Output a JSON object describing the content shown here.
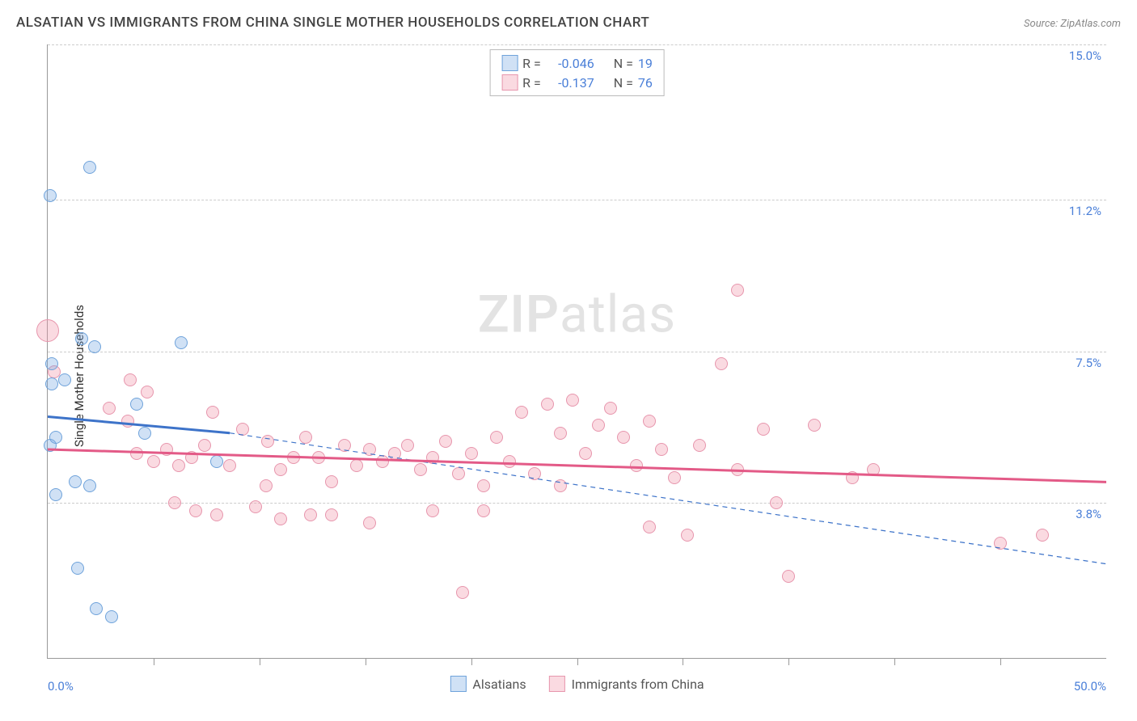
{
  "header": {
    "title": "ALSATIAN VS IMMIGRANTS FROM CHINA SINGLE MOTHER HOUSEHOLDS CORRELATION CHART",
    "source": "Source: ZipAtlas.com"
  },
  "ylabel": "Single Mother Households",
  "watermark_a": "ZIP",
  "watermark_b": "atlas",
  "axes": {
    "xlim": [
      0,
      50
    ],
    "ylim": [
      0,
      15
    ],
    "ygrid": [
      {
        "v": 15.0,
        "label": "15.0%"
      },
      {
        "v": 11.2,
        "label": "11.2%"
      },
      {
        "v": 7.5,
        "label": "7.5%"
      },
      {
        "v": 3.8,
        "label": "3.8%"
      }
    ],
    "xticks": [
      5,
      10,
      15,
      20,
      25,
      30,
      35,
      40,
      45
    ],
    "xlabels": [
      {
        "v": 0,
        "label": "0.0%"
      },
      {
        "v": 50,
        "label": "50.0%"
      }
    ]
  },
  "series": {
    "blue": {
      "label": "Alsatians",
      "fill": "rgba(120,170,225,0.35)",
      "stroke": "#6fa3db",
      "line_stroke": "#3d73c9",
      "r_label": "R =",
      "r_value": "-0.046",
      "n_label": "N =",
      "n_value": "19",
      "trend_solid": {
        "x1": 0,
        "y1": 5.9,
        "x2": 8.6,
        "y2": 5.5
      },
      "trend_dash": {
        "x1": 8.6,
        "y1": 5.5,
        "x2": 50,
        "y2": 2.3
      },
      "points": [
        {
          "x": 0.1,
          "y": 11.3,
          "r": 8
        },
        {
          "x": 0.8,
          "y": 6.8,
          "r": 8
        },
        {
          "x": 2.0,
          "y": 12.0,
          "r": 8
        },
        {
          "x": 0.2,
          "y": 7.2,
          "r": 8
        },
        {
          "x": 1.6,
          "y": 7.8,
          "r": 8
        },
        {
          "x": 2.2,
          "y": 7.6,
          "r": 8
        },
        {
          "x": 0.2,
          "y": 6.7,
          "r": 8
        },
        {
          "x": 0.1,
          "y": 5.2,
          "r": 8
        },
        {
          "x": 0.4,
          "y": 5.4,
          "r": 8
        },
        {
          "x": 1.3,
          "y": 4.3,
          "r": 8
        },
        {
          "x": 2.0,
          "y": 4.2,
          "r": 8
        },
        {
          "x": 0.4,
          "y": 4.0,
          "r": 8
        },
        {
          "x": 4.2,
          "y": 6.2,
          "r": 8
        },
        {
          "x": 4.6,
          "y": 5.5,
          "r": 8
        },
        {
          "x": 1.4,
          "y": 2.2,
          "r": 8
        },
        {
          "x": 2.3,
          "y": 1.2,
          "r": 8
        },
        {
          "x": 3.0,
          "y": 1.0,
          "r": 8
        },
        {
          "x": 6.3,
          "y": 7.7,
          "r": 8
        },
        {
          "x": 8.0,
          "y": 4.8,
          "r": 8
        }
      ]
    },
    "pink": {
      "label": "Immigrants from China",
      "fill": "rgba(240,150,170,0.35)",
      "stroke": "#e796ad",
      "line_stroke": "#e35a87",
      "r_label": "R =",
      "r_value": "-0.137",
      "n_label": "N =",
      "n_value": "76",
      "trend_solid": {
        "x1": 0,
        "y1": 5.1,
        "x2": 50,
        "y2": 4.3
      },
      "points": [
        {
          "x": 0.0,
          "y": 8.0,
          "r": 14
        },
        {
          "x": 0.3,
          "y": 7.0,
          "r": 8
        },
        {
          "x": 3.9,
          "y": 6.8,
          "r": 8
        },
        {
          "x": 2.9,
          "y": 6.1,
          "r": 8
        },
        {
          "x": 3.8,
          "y": 5.8,
          "r": 8
        },
        {
          "x": 4.7,
          "y": 6.5,
          "r": 8
        },
        {
          "x": 7.8,
          "y": 6.0,
          "r": 8
        },
        {
          "x": 4.2,
          "y": 5.0,
          "r": 8
        },
        {
          "x": 5.0,
          "y": 4.8,
          "r": 8
        },
        {
          "x": 5.6,
          "y": 5.1,
          "r": 8
        },
        {
          "x": 6.2,
          "y": 4.7,
          "r": 8
        },
        {
          "x": 6.8,
          "y": 4.9,
          "r": 8
        },
        {
          "x": 7.4,
          "y": 5.2,
          "r": 8
        },
        {
          "x": 6.0,
          "y": 3.8,
          "r": 8
        },
        {
          "x": 7.0,
          "y": 3.6,
          "r": 8
        },
        {
          "x": 8.0,
          "y": 3.5,
          "r": 8
        },
        {
          "x": 8.6,
          "y": 4.7,
          "r": 8
        },
        {
          "x": 9.2,
          "y": 5.6,
          "r": 8
        },
        {
          "x": 9.8,
          "y": 3.7,
          "r": 8
        },
        {
          "x": 10.4,
          "y": 5.3,
          "r": 8
        },
        {
          "x": 10.3,
          "y": 4.2,
          "r": 8
        },
        {
          "x": 11.0,
          "y": 4.6,
          "r": 8
        },
        {
          "x": 11.0,
          "y": 3.4,
          "r": 8
        },
        {
          "x": 11.6,
          "y": 4.9,
          "r": 8
        },
        {
          "x": 12.2,
          "y": 5.4,
          "r": 8
        },
        {
          "x": 12.4,
          "y": 3.5,
          "r": 8
        },
        {
          "x": 12.8,
          "y": 4.9,
          "r": 8
        },
        {
          "x": 13.4,
          "y": 4.3,
          "r": 8
        },
        {
          "x": 13.4,
          "y": 3.5,
          "r": 8
        },
        {
          "x": 14.0,
          "y": 5.2,
          "r": 8
        },
        {
          "x": 14.6,
          "y": 4.7,
          "r": 8
        },
        {
          "x": 15.2,
          "y": 5.1,
          "r": 8
        },
        {
          "x": 15.2,
          "y": 3.3,
          "r": 8
        },
        {
          "x": 15.8,
          "y": 4.8,
          "r": 8
        },
        {
          "x": 16.4,
          "y": 5.0,
          "r": 8
        },
        {
          "x": 17.0,
          "y": 5.2,
          "r": 8
        },
        {
          "x": 17.6,
          "y": 4.6,
          "r": 8
        },
        {
          "x": 18.2,
          "y": 4.9,
          "r": 8
        },
        {
          "x": 18.2,
          "y": 3.6,
          "r": 8
        },
        {
          "x": 18.8,
          "y": 5.3,
          "r": 8
        },
        {
          "x": 19.4,
          "y": 4.5,
          "r": 8
        },
        {
          "x": 19.6,
          "y": 1.6,
          "r": 8
        },
        {
          "x": 20.0,
          "y": 5.0,
          "r": 8
        },
        {
          "x": 20.6,
          "y": 4.2,
          "r": 8
        },
        {
          "x": 20.6,
          "y": 3.6,
          "r": 8
        },
        {
          "x": 21.2,
          "y": 5.4,
          "r": 8
        },
        {
          "x": 21.8,
          "y": 4.8,
          "r": 8
        },
        {
          "x": 22.4,
          "y": 6.0,
          "r": 8
        },
        {
          "x": 23.0,
          "y": 4.5,
          "r": 8
        },
        {
          "x": 23.6,
          "y": 6.2,
          "r": 8
        },
        {
          "x": 24.2,
          "y": 5.5,
          "r": 8
        },
        {
          "x": 24.2,
          "y": 4.2,
          "r": 8
        },
        {
          "x": 24.8,
          "y": 6.3,
          "r": 8
        },
        {
          "x": 25.4,
          "y": 5.0,
          "r": 8
        },
        {
          "x": 26.0,
          "y": 5.7,
          "r": 8
        },
        {
          "x": 26.6,
          "y": 6.1,
          "r": 8
        },
        {
          "x": 27.2,
          "y": 5.4,
          "r": 8
        },
        {
          "x": 27.8,
          "y": 4.7,
          "r": 8
        },
        {
          "x": 28.4,
          "y": 5.8,
          "r": 8
        },
        {
          "x": 28.4,
          "y": 3.2,
          "r": 8
        },
        {
          "x": 29.0,
          "y": 5.1,
          "r": 8
        },
        {
          "x": 29.6,
          "y": 4.4,
          "r": 8
        },
        {
          "x": 30.2,
          "y": 3.0,
          "r": 8
        },
        {
          "x": 30.8,
          "y": 5.2,
          "r": 8
        },
        {
          "x": 31.8,
          "y": 7.2,
          "r": 8
        },
        {
          "x": 32.6,
          "y": 9.0,
          "r": 8
        },
        {
          "x": 32.6,
          "y": 4.6,
          "r": 8
        },
        {
          "x": 33.8,
          "y": 5.6,
          "r": 8
        },
        {
          "x": 34.4,
          "y": 3.8,
          "r": 8
        },
        {
          "x": 35.0,
          "y": 2.0,
          "r": 8
        },
        {
          "x": 36.2,
          "y": 5.7,
          "r": 8
        },
        {
          "x": 38.0,
          "y": 4.4,
          "r": 8
        },
        {
          "x": 39.0,
          "y": 4.6,
          "r": 8
        },
        {
          "x": 45.0,
          "y": 2.8,
          "r": 8
        },
        {
          "x": 47.0,
          "y": 3.0,
          "r": 8
        }
      ]
    }
  }
}
